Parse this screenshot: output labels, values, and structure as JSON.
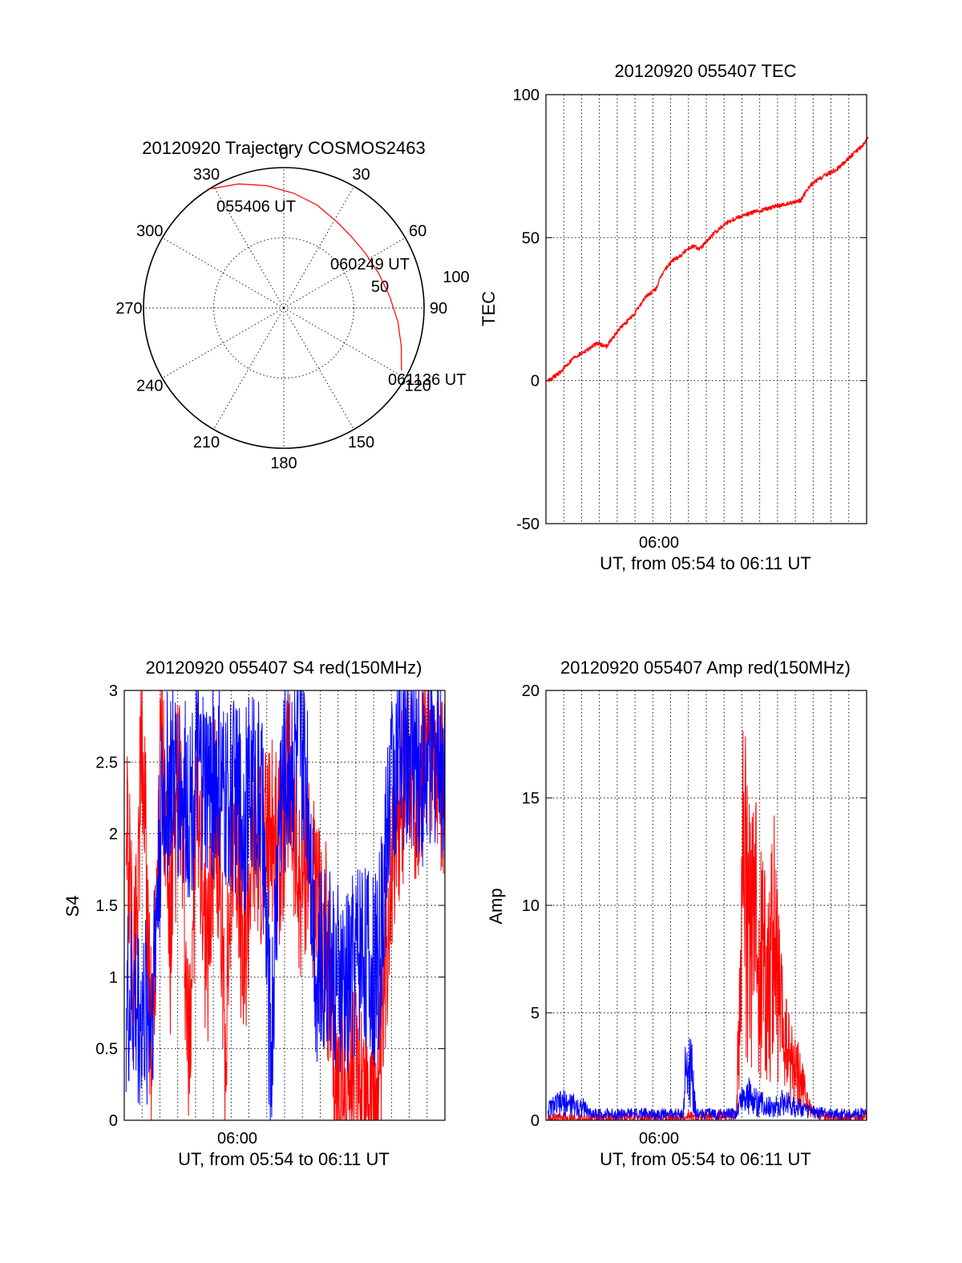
{
  "chart_data": [
    {
      "type": "polar",
      "title": "20120920 Trajectory COSMOS2463",
      "azimuth_labels": [
        "0",
        "30",
        "60",
        "90",
        "120",
        "150",
        "180",
        "210",
        "240",
        "270",
        "300",
        "330"
      ],
      "radius_labels": [
        "50",
        "100"
      ],
      "rlim": [
        0,
        100
      ],
      "grid": true,
      "series": [
        {
          "color": "#ff0000",
          "points": [
            {
              "az": 328,
              "r": 100
            },
            {
              "az": 340,
              "r": 94
            },
            {
              "az": 352,
              "r": 88
            },
            {
              "az": 5,
              "r": 82
            },
            {
              "az": 18,
              "r": 77
            },
            {
              "az": 32,
              "r": 72
            },
            {
              "az": 44,
              "r": 70
            },
            {
              "az": 56,
              "r": 70
            },
            {
              "az": 70,
              "r": 72
            },
            {
              "az": 84,
              "r": 76
            },
            {
              "az": 97,
              "r": 82
            },
            {
              "az": 108,
              "r": 88
            },
            {
              "az": 118,
              "r": 95
            }
          ]
        }
      ],
      "annotations": [
        {
          "text": "055406 UT",
          "az": 328,
          "r": 100
        },
        {
          "text": "060249 UT",
          "az": 56,
          "r": 70
        },
        {
          "text": "061136 UT",
          "az": 118,
          "r": 95
        }
      ]
    },
    {
      "type": "line",
      "title": "20120920 055407 TEC",
      "xlabel": "UT, from 05:54 to 06:11 UT",
      "ylabel": "TEC",
      "x_tick_labels": [
        "06:00"
      ],
      "y_ticks": [
        -50,
        0,
        50,
        100
      ],
      "xlim": [
        "05:54:07",
        "06:11:36"
      ],
      "ylim": [
        -50,
        100
      ],
      "grid": true,
      "series": [
        {
          "color": "#ff0000",
          "x_minutes_after_0554": [
            0.1,
            0.8,
            1.5,
            2.3,
            2.8,
            3.3,
            4.0,
            4.8,
            5.4,
            6.0,
            6.4,
            6.9,
            7.4,
            7.7,
            8.1,
            8.4,
            9.1,
            9.8,
            10.4,
            10.9,
            11.4,
            12.0,
            12.5,
            12.8,
            13.3,
            13.9,
            14.4,
            14.8,
            15.3,
            15.9,
            16.4,
            16.9,
            17.4,
            17.6
          ],
          "values": [
            0,
            3,
            8,
            11,
            13,
            12,
            18,
            23,
            29,
            32,
            38,
            42,
            44,
            46,
            47,
            46,
            51,
            55,
            57,
            58,
            59,
            60,
            61,
            61,
            62,
            63,
            68,
            70,
            72,
            74,
            77,
            80,
            83,
            85
          ]
        }
      ]
    },
    {
      "type": "line",
      "title": "20120920 055407 S4 red(150MHz)",
      "xlabel": "UT, from 05:54 to 06:11 UT",
      "ylabel": "S4",
      "x_tick_labels": [
        "06:00"
      ],
      "y_ticks": [
        0,
        0.5,
        1,
        1.5,
        2,
        2.5,
        3
      ],
      "y_tick_labels": [
        "0",
        "0.5",
        "1",
        "1.5",
        "2",
        "2.5",
        "3"
      ],
      "ylim": [
        0,
        3
      ],
      "grid": true,
      "series": [
        {
          "color": "#ff0000",
          "x_minutes_after_0554": [
            0.1,
            0.5,
            1.0,
            1.5,
            2.0,
            2.5,
            3.0,
            3.5,
            4.0,
            4.5,
            5.0,
            5.5,
            6.0,
            6.5,
            7.0,
            7.5,
            8.0,
            8.5,
            9.0,
            9.5,
            10.0,
            10.5,
            11.0,
            11.5,
            12.0,
            12.5,
            13.0,
            13.5,
            14.0,
            14.5,
            15.0,
            15.5,
            16.0,
            16.5,
            17.0,
            17.5
          ],
          "values": [
            2.2,
            1.0,
            2.6,
            0.4,
            2.8,
            1.2,
            2.5,
            0.3,
            2.4,
            1.1,
            2.2,
            0.6,
            2.3,
            1.0,
            2.0,
            1.9,
            2.0,
            1.8,
            2.4,
            1.6,
            1.9,
            1.4,
            1.3,
            0.2,
            0.2,
            0.3,
            0.3,
            0.2,
            0.3,
            1.8,
            2.0,
            2.6,
            2.3,
            2.7,
            2.4,
            2.2
          ]
        },
        {
          "color": "#0000ff",
          "x_minutes_after_0554": [
            0.1,
            0.5,
            1.0,
            1.5,
            2.0,
            2.5,
            3.0,
            3.5,
            4.0,
            4.5,
            5.0,
            5.5,
            6.0,
            6.5,
            7.0,
            7.5,
            8.0,
            8.5,
            9.0,
            9.5,
            10.0,
            10.5,
            11.0,
            11.5,
            12.0,
            12.5,
            13.0,
            13.5,
            14.0,
            14.5,
            15.0,
            15.5,
            16.0,
            16.5,
            17.0,
            17.5
          ],
          "values": [
            0.8,
            0.8,
            0.7,
            0.8,
            2.1,
            2.4,
            2.3,
            2.2,
            2.4,
            2.3,
            2.4,
            2.2,
            2.3,
            2.1,
            2.4,
            2.2,
            0.4,
            2.3,
            2.5,
            2.6,
            2.4,
            1.0,
            1.2,
            1.0,
            0.9,
            1.1,
            1.3,
            1.0,
            1.2,
            2.4,
            2.5,
            2.6,
            2.5,
            2.4,
            2.6,
            2.5
          ]
        }
      ]
    },
    {
      "type": "line",
      "title": "20120920 055407 Amp red(150MHz)",
      "xlabel": "UT, from 05:54 to 06:11 UT",
      "ylabel": "Amp",
      "x_tick_labels": [
        "06:00"
      ],
      "y_ticks": [
        0,
        5,
        10,
        15,
        20
      ],
      "ylim": [
        0,
        20
      ],
      "grid": true,
      "series": [
        {
          "color": "#ff0000",
          "x_minutes_after_0554": [
            0.1,
            4.0,
            7.6,
            7.8,
            8.0,
            10.4,
            10.6,
            10.8,
            11.0,
            11.3,
            11.6,
            12.0,
            12.4,
            12.8,
            13.2,
            13.6,
            14.0,
            14.4,
            14.8,
            15.2,
            15.6,
            16.0,
            17.5
          ],
          "values": [
            0.1,
            0.1,
            0.1,
            0.3,
            0.1,
            0.3,
            7.5,
            12.5,
            9.0,
            8.0,
            9.5,
            6.0,
            8.5,
            4.5,
            3.0,
            2.5,
            1.5,
            0.5,
            0.2,
            0.2,
            0.1,
            0.1,
            0.1
          ]
        },
        {
          "color": "#0000ff",
          "x_minutes_after_0554": [
            0.1,
            0.5,
            1.0,
            1.5,
            2.0,
            2.5,
            4.0,
            6.0,
            7.5,
            7.6,
            7.8,
            8.0,
            8.2,
            9.0,
            10.4,
            10.6,
            11.0,
            11.5,
            12.0,
            12.5,
            13.0,
            13.5,
            14.0,
            14.5,
            15.5,
            17.5
          ],
          "values": [
            0.5,
            0.7,
            0.8,
            0.7,
            0.6,
            0.3,
            0.3,
            0.3,
            0.3,
            2.0,
            2.3,
            2.0,
            0.3,
            0.3,
            0.3,
            0.9,
            1.2,
            0.8,
            0.7,
            0.6,
            0.9,
            0.7,
            0.5,
            0.4,
            0.3,
            0.3
          ]
        }
      ]
    }
  ]
}
